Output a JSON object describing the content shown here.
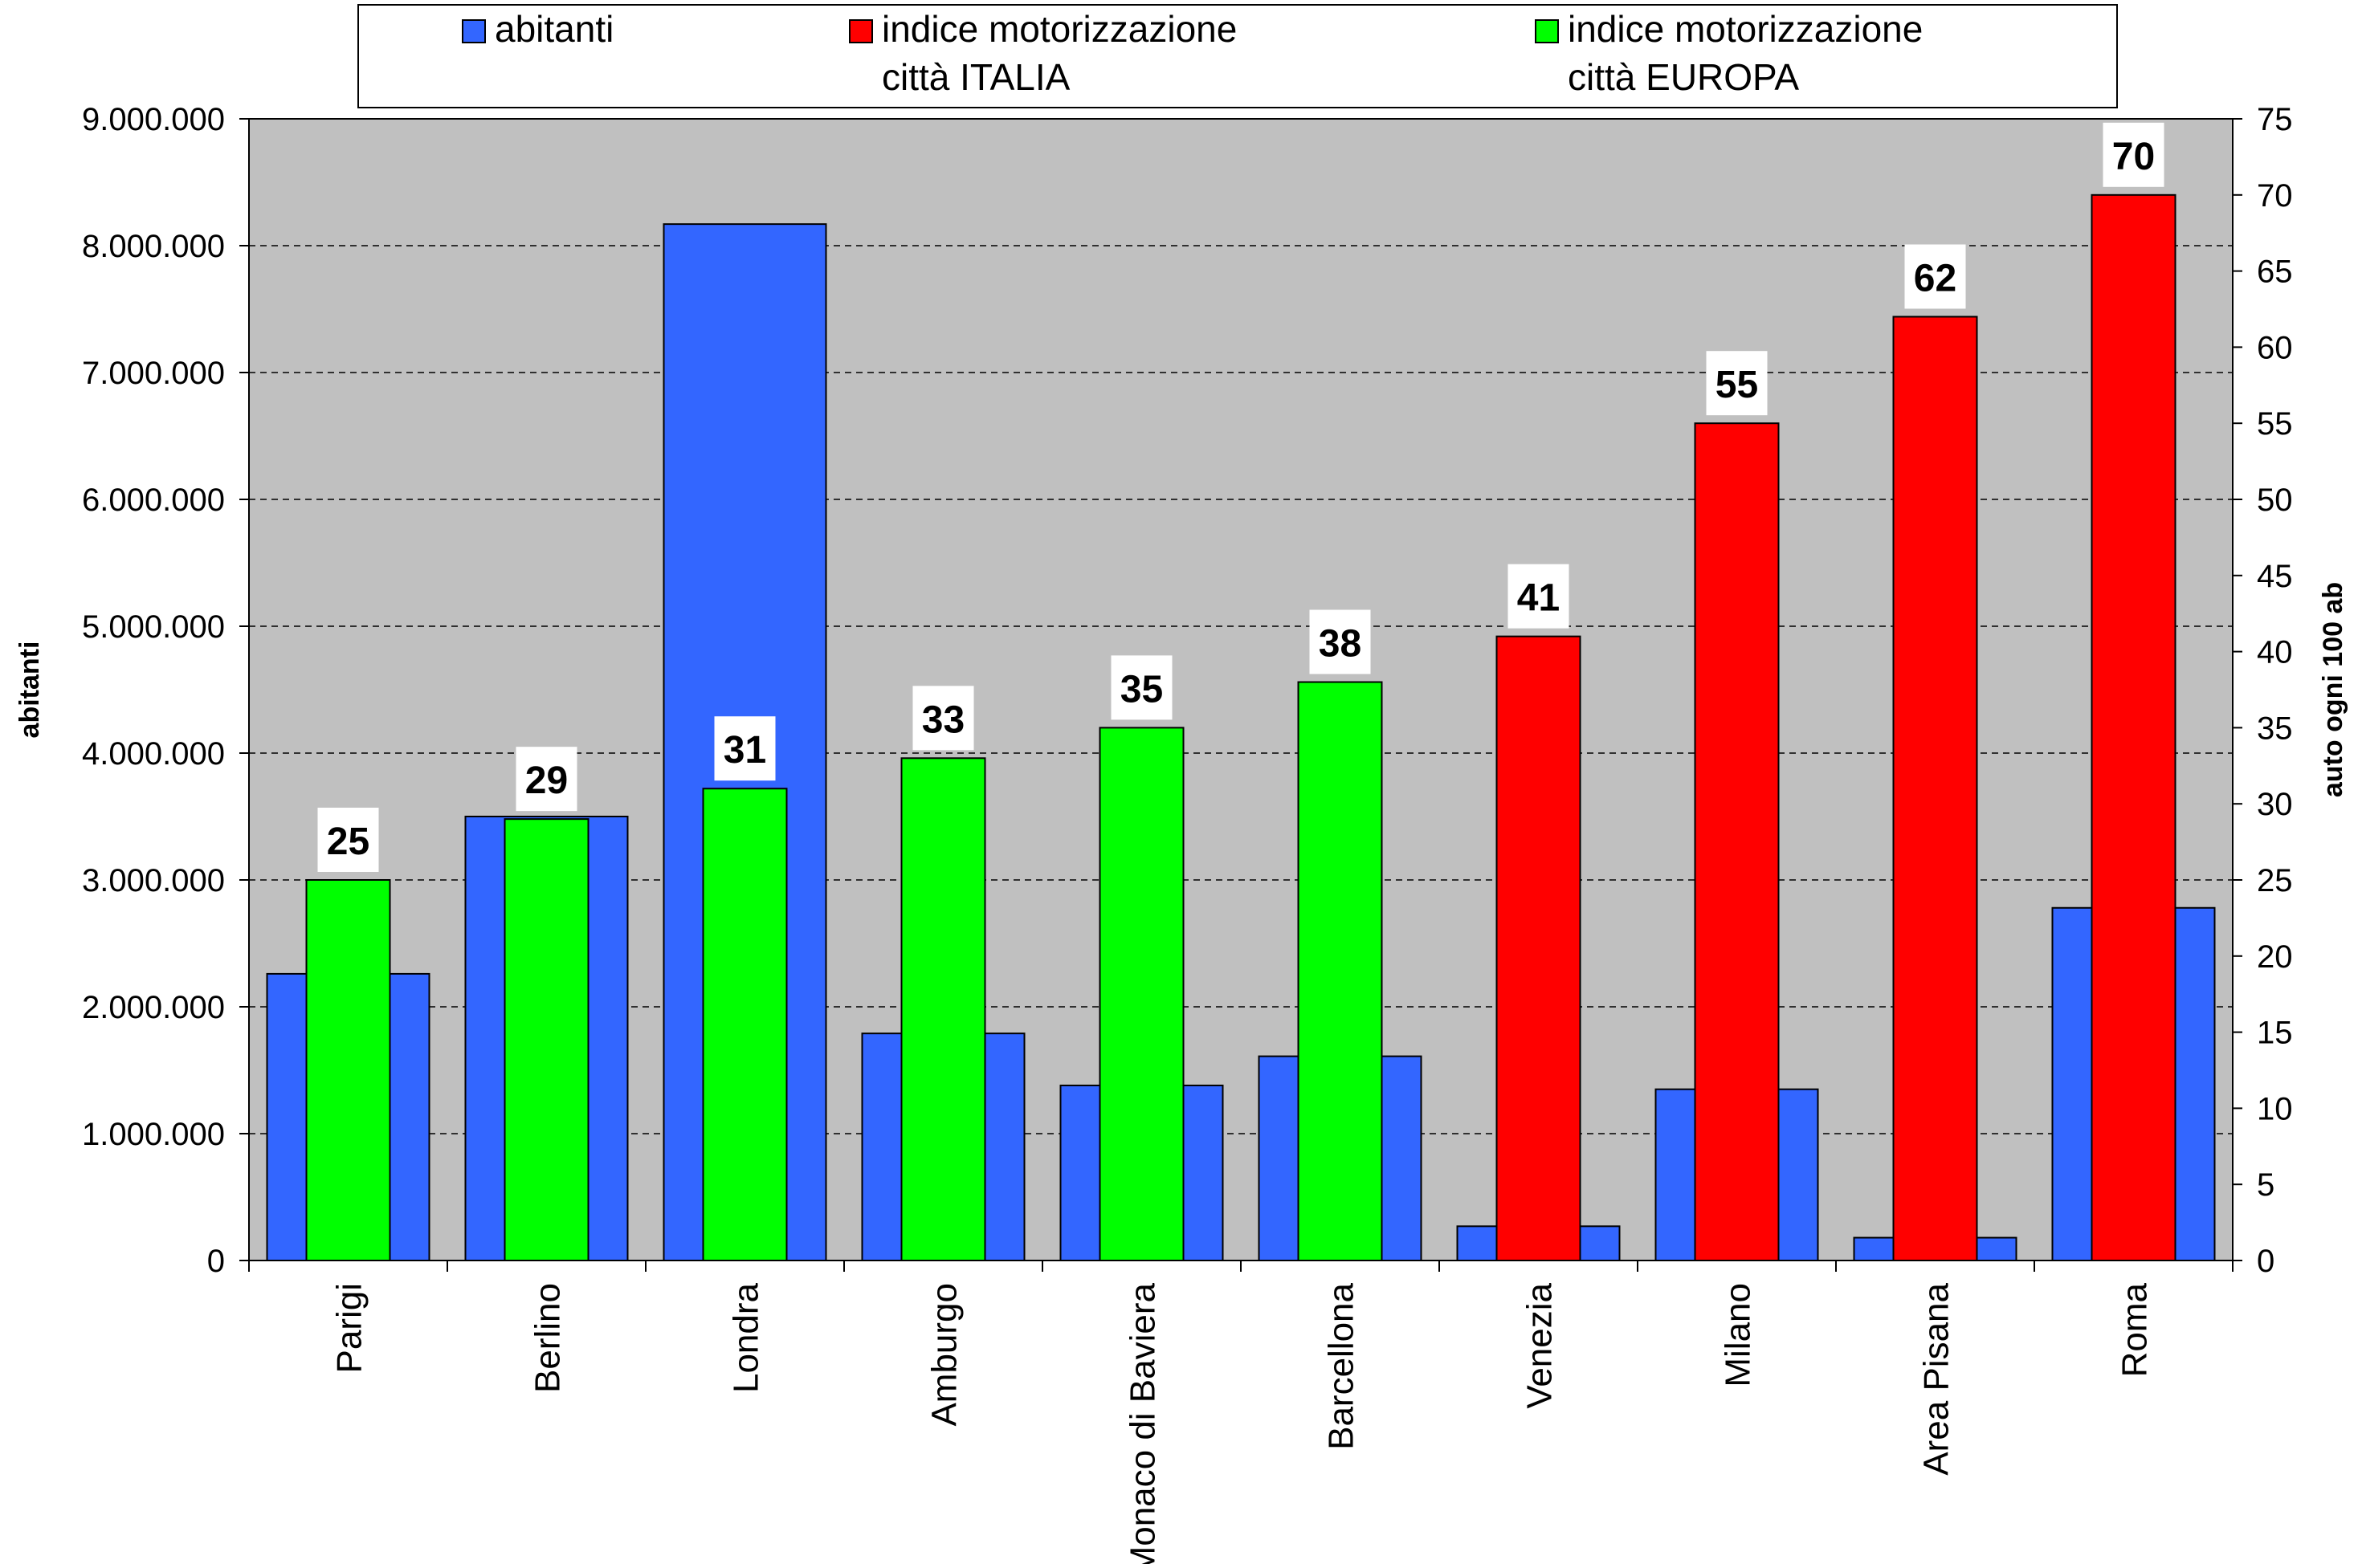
{
  "chart_data": {
    "type": "bar",
    "categories": [
      "Parigi",
      "Berlino",
      "Londra",
      "Amburgo",
      "Monaco di Baviera",
      "Barcellona",
      "Venezia",
      "Milano",
      "Area Pisana",
      "Roma"
    ],
    "series": [
      {
        "name": "abitanti",
        "axis": "left",
        "color": "#3366FF",
        "values": [
          2260000,
          3500000,
          8170000,
          1790000,
          1380000,
          1610000,
          270000,
          1350000,
          180000,
          2780000
        ]
      },
      {
        "name": "indice motorizzazione città ITALIA",
        "axis": "right",
        "color": "#FF0000",
        "values": [
          null,
          null,
          null,
          null,
          null,
          null,
          41,
          55,
          62,
          70
        ],
        "data_labels": [
          "",
          "",
          "",
          "",
          "",
          "",
          "41",
          "55",
          "62",
          "70"
        ]
      },
      {
        "name": "indice motorizzazione città EUROPA",
        "axis": "right",
        "color": "#00FF00",
        "values": [
          25,
          29,
          31,
          33,
          35,
          38,
          null,
          null,
          null,
          null
        ],
        "data_labels": [
          "25",
          "29",
          "31",
          "33",
          "35",
          "38",
          "",
          "",
          "",
          ""
        ]
      }
    ],
    "legend": {
      "position": "top",
      "items": [
        {
          "line1": "abitanti",
          "line2": "",
          "color": "#3366FF"
        },
        {
          "line1": "indice motorizzazione",
          "line2": "città ITALIA",
          "color": "#FF0000"
        },
        {
          "line1": "indice motorizzazione",
          "line2": "città EUROPA",
          "color": "#00FF00"
        }
      ]
    },
    "y_left": {
      "label": "abitanti",
      "ylim": [
        0,
        9000000
      ],
      "ticks": [
        0,
        1000000,
        2000000,
        3000000,
        4000000,
        5000000,
        6000000,
        7000000,
        8000000,
        9000000
      ],
      "tick_labels": [
        "0",
        "1.000.000",
        "2.000.000",
        "3.000.000",
        "4.000.000",
        "5.000.000",
        "6.000.000",
        "7.000.000",
        "8.000.000",
        "9.000.000"
      ]
    },
    "y_right": {
      "label": "auto ogni 100 ab",
      "ylim": [
        0,
        75
      ],
      "ticks": [
        0,
        5,
        10,
        15,
        20,
        25,
        30,
        35,
        40,
        45,
        50,
        55,
        60,
        65,
        70,
        75
      ],
      "tick_labels": [
        "0",
        "5",
        "10",
        "15",
        "20",
        "25",
        "30",
        "35",
        "40",
        "45",
        "50",
        "55",
        "60",
        "65",
        "70",
        "75"
      ]
    },
    "grid": "horizontal dashed",
    "plot_background": "#C0C0C0"
  }
}
